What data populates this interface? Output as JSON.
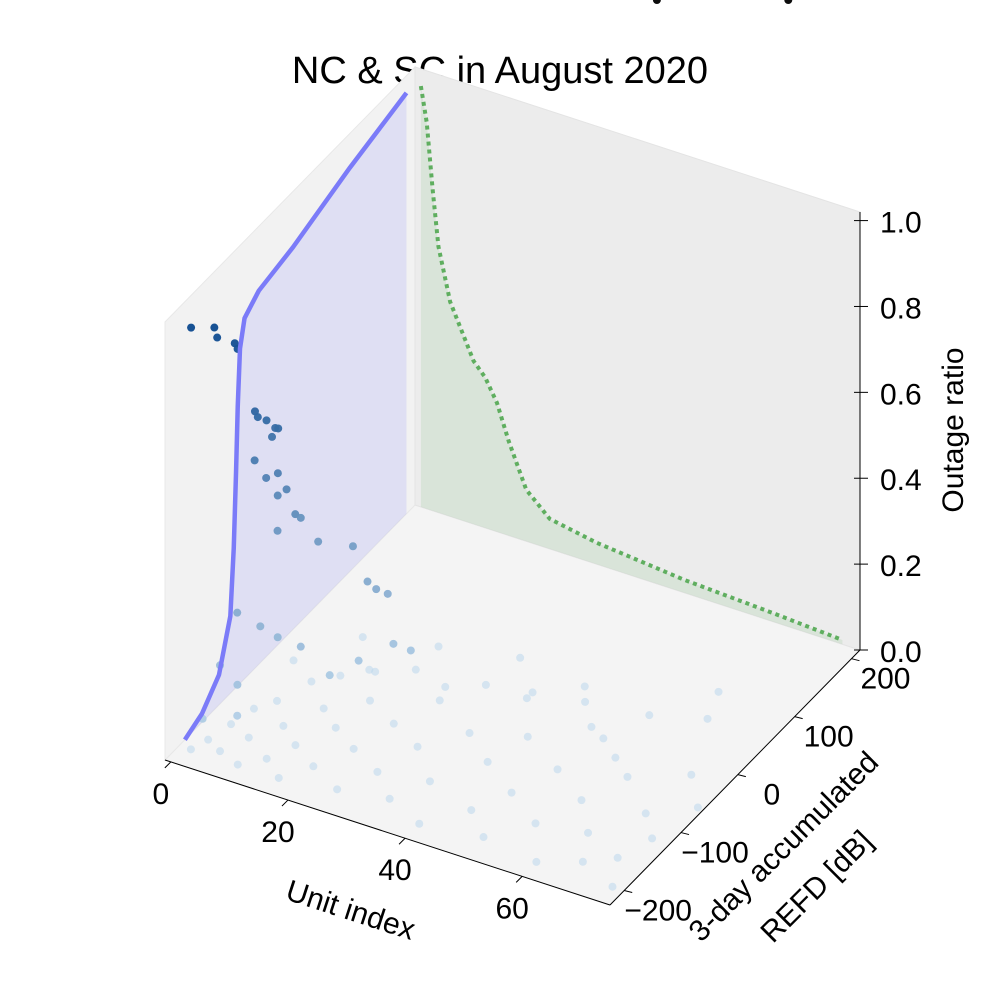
{
  "chart_data": {
    "type": "scatter3d",
    "title": "NC & SC in August 2020",
    "xlabel": "Unit index",
    "ylabel": [
      "3-day accumulated",
      "REFD [dB]"
    ],
    "zlabel": "Outage ratio",
    "xlim": [
      -1,
      75
    ],
    "ylim": [
      -225,
      215
    ],
    "zlim": [
      0,
      1.02
    ],
    "xticks": [
      0,
      20,
      40,
      60
    ],
    "yticks": [
      {
        "value": -200,
        "label": "−200"
      },
      {
        "value": -100,
        "label": "−100"
      },
      0,
      100,
      200
    ],
    "zticks": [
      {
        "value": 0,
        "label": "0.0"
      },
      0.2,
      0.4,
      0.6,
      0.8,
      {
        "value": 1,
        "label": "1.0"
      }
    ],
    "cmap": [
      "#bcd7ec",
      "#08468c"
    ],
    "points": {
      "x": [
        2,
        5,
        5,
        8,
        8,
        10,
        10,
        11,
        12,
        13,
        10,
        8,
        9,
        11,
        12,
        10,
        13,
        9,
        12,
        14,
        18,
        20,
        21,
        22,
        6,
        8,
        10,
        12,
        22,
        24,
        5,
        7,
        15,
        18,
        3,
        6,
        1,
        2,
        3,
        4,
        5,
        6,
        7,
        8,
        9,
        10,
        11,
        12,
        13,
        14,
        15,
        16,
        17,
        18,
        19,
        20,
        22,
        24,
        25,
        27,
        28,
        30,
        31,
        33,
        35,
        36,
        38,
        40,
        41,
        43,
        45,
        46,
        48,
        50,
        51,
        53,
        55,
        56,
        58,
        60,
        61,
        63,
        64,
        66,
        68,
        69,
        70,
        72,
        73,
        74,
        3,
        9,
        14,
        20,
        26,
        32,
        38,
        44,
        50,
        57,
        62,
        67,
        71
      ],
      "y": [
        -210,
        -200,
        -195,
        -195,
        -190,
        -180,
        -175,
        -170,
        -165,
        -170,
        -150,
        -160,
        -150,
        -150,
        -145,
        -140,
        -140,
        -130,
        -120,
        -110,
        -90,
        -85,
        -80,
        -70,
        -170,
        -150,
        -140,
        -120,
        -60,
        -50,
        -190,
        -180,
        -100,
        -80,
        -200,
        -170,
        -200,
        -180,
        -150,
        -120,
        -190,
        -100,
        -160,
        -60,
        -200,
        -130,
        -40,
        -180,
        -90,
        -150,
        -20,
        -200,
        -110,
        -60,
        -170,
        0,
        -130,
        -80,
        -190,
        -30,
        -150,
        -100,
        10,
        -180,
        -60,
        -140,
        20,
        -200,
        -90,
        -40,
        -160,
        30,
        -120,
        -190,
        -70,
        -10,
        -150,
        40,
        -100,
        -200,
        -50,
        -140,
        60,
        -180,
        -90,
        -20,
        -160,
        -120,
        -200,
        -60,
        -40,
        20,
        -20,
        40,
        -10,
        60,
        10,
        50,
        0,
        -30,
        100,
        -60,
        130
      ],
      "z": [
        1.0,
        1.0,
        0.97,
        0.97,
        0.95,
        0.8,
        0.78,
        0.77,
        0.75,
        0.76,
        0.7,
        0.65,
        0.6,
        0.62,
        0.58,
        0.55,
        0.52,
        0.45,
        0.48,
        0.42,
        0.4,
        0.32,
        0.3,
        0.28,
        0.3,
        0.25,
        0.22,
        0.18,
        0.15,
        0.13,
        0.2,
        0.15,
        0.1,
        0.12,
        0.08,
        0.06,
        0,
        0,
        0,
        0,
        0,
        0,
        0,
        0,
        0,
        0,
        0,
        0,
        0,
        0,
        0,
        0,
        0,
        0,
        0,
        0,
        0,
        0,
        0,
        0,
        0,
        0,
        0,
        0,
        0,
        0,
        0,
        0,
        0,
        0,
        0,
        0,
        0,
        0,
        0,
        0,
        0,
        0,
        0,
        0,
        0,
        0,
        0,
        0,
        0,
        0,
        0,
        0,
        0,
        0,
        0,
        0,
        0,
        0,
        0,
        0,
        0,
        0,
        0,
        0,
        0
      ]
    },
    "curve_yz": {
      "color": "#7b7bf8",
      "y": [
        -190,
        -160,
        -130,
        -110,
        -104,
        -100,
        -97,
        -93,
        -85,
        -60,
        0,
        100,
        200
      ],
      "z": [
        0,
        0.02,
        0.07,
        0.18,
        0.33,
        0.5,
        0.65,
        0.78,
        0.84,
        0.87,
        0.89,
        0.94,
        0.98
      ]
    },
    "curve_xz": {
      "color": "#5fae5f",
      "x": [
        0,
        1,
        2,
        3,
        5,
        7,
        9,
        11,
        13,
        15,
        18,
        22,
        30,
        45,
        60,
        72
      ],
      "z": [
        0.98,
        0.9,
        0.75,
        0.62,
        0.5,
        0.44,
        0.38,
        0.35,
        0.3,
        0.22,
        0.12,
        0.07,
        0.05,
        0.03,
        0.02,
        0.01
      ]
    }
  }
}
